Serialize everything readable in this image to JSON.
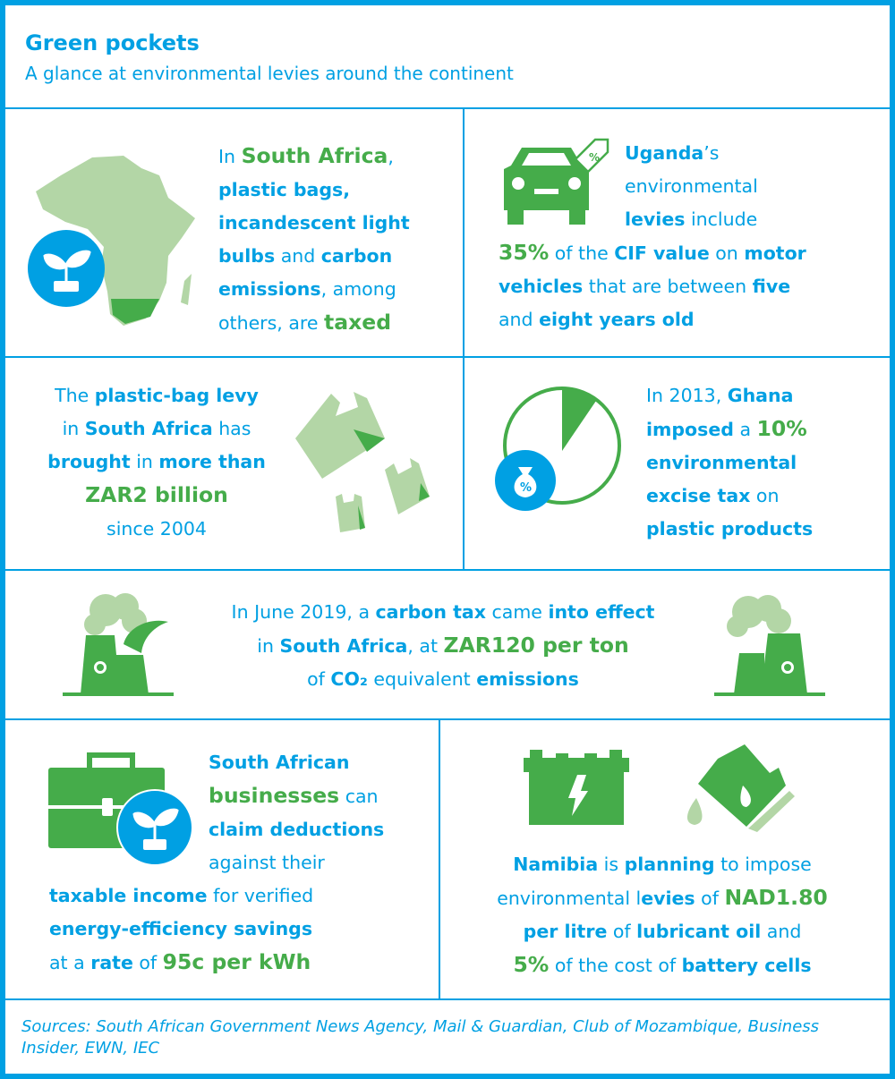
{
  "header": {
    "title": "Green pockets",
    "subtitle": "A glance at environmental levies around the continent"
  },
  "colors": {
    "blue": "#00a0e3",
    "green": "#45ac4a",
    "light_green": "#b3d6a6"
  },
  "panels": [
    {
      "id": "south-africa-taxes",
      "icons": [
        "africa-map-icon",
        "plant-icon"
      ],
      "lines": [
        [
          {
            "t": "In ",
            "s": "n"
          },
          {
            "t": "South Africa",
            "s": "g"
          },
          {
            "t": ",",
            "s": "n"
          }
        ],
        [
          {
            "t": "plastic bags,",
            "s": "b"
          }
        ],
        [
          {
            "t": "incandescent light",
            "s": "b"
          }
        ],
        [
          {
            "t": "bulbs",
            "s": "b"
          },
          {
            "t": " and ",
            "s": "n"
          },
          {
            "t": "carbon",
            "s": "b"
          }
        ],
        [
          {
            "t": "emissions",
            "s": "b"
          },
          {
            "t": ", among",
            "s": "n"
          }
        ],
        [
          {
            "t": "others, are ",
            "s": "n"
          },
          {
            "t": "taxed",
            "s": "g"
          }
        ]
      ]
    },
    {
      "id": "uganda-levies",
      "icons": [
        "car-icon",
        "percent-tag-icon"
      ],
      "tag_label": "%",
      "lines": [
        [
          {
            "t": "Uganda",
            "s": "b"
          },
          {
            "t": "’s",
            "s": "n"
          }
        ],
        [
          {
            "t": "environmental",
            "s": "n"
          }
        ],
        [
          {
            "t": "levies",
            "s": "b"
          },
          {
            "t": " include",
            "s": "n"
          }
        ],
        [
          {
            "t": "35%",
            "s": "g"
          },
          {
            "t": " of the ",
            "s": "n"
          },
          {
            "t": "CIF value",
            "s": "b"
          },
          {
            "t": " on ",
            "s": "n"
          },
          {
            "t": "motor",
            "s": "b"
          }
        ],
        [
          {
            "t": "vehicles",
            "s": "b"
          },
          {
            "t": " that are between ",
            "s": "n"
          },
          {
            "t": "five",
            "s": "b"
          }
        ],
        [
          {
            "t": "and ",
            "s": "n"
          },
          {
            "t": "eight years old",
            "s": "b"
          }
        ]
      ]
    },
    {
      "id": "plastic-bag-levy",
      "icons": [
        "plastic-bag-icon"
      ],
      "lines": [
        [
          {
            "t": "The ",
            "s": "n"
          },
          {
            "t": "plastic-bag levy",
            "s": "b"
          }
        ],
        [
          {
            "t": "in ",
            "s": "n"
          },
          {
            "t": "South Africa",
            "s": "b"
          },
          {
            "t": " has",
            "s": "n"
          }
        ],
        [
          {
            "t": "brought",
            "s": "b"
          },
          {
            "t": " in ",
            "s": "n"
          },
          {
            "t": "more than",
            "s": "b"
          }
        ],
        [
          {
            "t": "ZAR2 billion",
            "s": "g"
          }
        ],
        [
          {
            "t": "since 2004",
            "s": "n"
          }
        ]
      ]
    },
    {
      "id": "ghana-tax",
      "icons": [
        "pie-icon",
        "money-bag-icon"
      ],
      "money_label": "%",
      "lines": [
        [
          {
            "t": "In 2013, ",
            "s": "n"
          },
          {
            "t": "Ghana",
            "s": "b"
          }
        ],
        [
          {
            "t": "imposed",
            "s": "b"
          },
          {
            "t": " a ",
            "s": "n"
          },
          {
            "t": "10%",
            "s": "g"
          }
        ],
        [
          {
            "t": "environmental",
            "s": "b"
          }
        ],
        [
          {
            "t": "excise tax",
            "s": "b"
          },
          {
            "t": " on",
            "s": "n"
          }
        ],
        [
          {
            "t": "plastic products",
            "s": "b"
          }
        ]
      ]
    },
    {
      "id": "carbon-tax",
      "icons": [
        "factory-icon"
      ],
      "lines": [
        [
          {
            "t": "In June 2019, a ",
            "s": "n"
          },
          {
            "t": "carbon tax",
            "s": "b"
          },
          {
            "t": " came ",
            "s": "n"
          },
          {
            "t": "into effect",
            "s": "b"
          }
        ],
        [
          {
            "t": "in ",
            "s": "n"
          },
          {
            "t": "South Africa",
            "s": "b"
          },
          {
            "t": ", at ",
            "s": "n"
          },
          {
            "t": "ZAR120 per ton",
            "s": "g"
          }
        ],
        [
          {
            "t": "of ",
            "s": "n"
          },
          {
            "t": "CO₂",
            "s": "b"
          },
          {
            "t": " equivalent ",
            "s": "n"
          },
          {
            "t": "emissions",
            "s": "b"
          }
        ]
      ]
    },
    {
      "id": "business-deductions",
      "icons": [
        "briefcase-icon",
        "plant-icon"
      ],
      "lines": [
        [
          {
            "t": "South African",
            "s": "b"
          }
        ],
        [
          {
            "t": "businesses",
            "s": "g"
          },
          {
            "t": " can",
            "s": "n"
          }
        ],
        [
          {
            "t": "claim deductions",
            "s": "b"
          }
        ],
        [
          {
            "t": "against their",
            "s": "n"
          }
        ],
        [
          {
            "t": "taxable income",
            "s": "b"
          },
          {
            "t": " for verified",
            "s": "n"
          }
        ],
        [
          {
            "t": "energy-efficiency savings",
            "s": "b"
          }
        ],
        [
          {
            "t": "at a ",
            "s": "n"
          },
          {
            "t": "rate",
            "s": "b"
          },
          {
            "t": " of ",
            "s": "n"
          },
          {
            "t": "95c per kWh",
            "s": "g"
          }
        ]
      ]
    },
    {
      "id": "namibia-levies",
      "icons": [
        "battery-icon",
        "oil-can-icon"
      ],
      "lines": [
        [
          {
            "t": "Namibia",
            "s": "b"
          },
          {
            "t": " is ",
            "s": "n"
          },
          {
            "t": "planning",
            "s": "b"
          },
          {
            "t": " to impose",
            "s": "n"
          }
        ],
        [
          {
            "t": "environmental l",
            "s": "n"
          },
          {
            "t": "evies",
            "s": "b"
          },
          {
            "t": " of ",
            "s": "n"
          },
          {
            "t": "NAD1.80",
            "s": "g"
          }
        ],
        [
          {
            "t": "per litre",
            "s": "b"
          },
          {
            "t": " of ",
            "s": "n"
          },
          {
            "t": "lubricant oil",
            "s": "b"
          },
          {
            "t": " and",
            "s": "n"
          }
        ],
        [
          {
            "t": "5%",
            "s": "g"
          },
          {
            "t": " of the cost of ",
            "s": "n"
          },
          {
            "t": "battery cells",
            "s": "b"
          }
        ]
      ]
    }
  ],
  "sources": "Sources: South African Government News Agency, Mail & Guardian, Club of Mozambique, Business Insider, EWN, IEC"
}
